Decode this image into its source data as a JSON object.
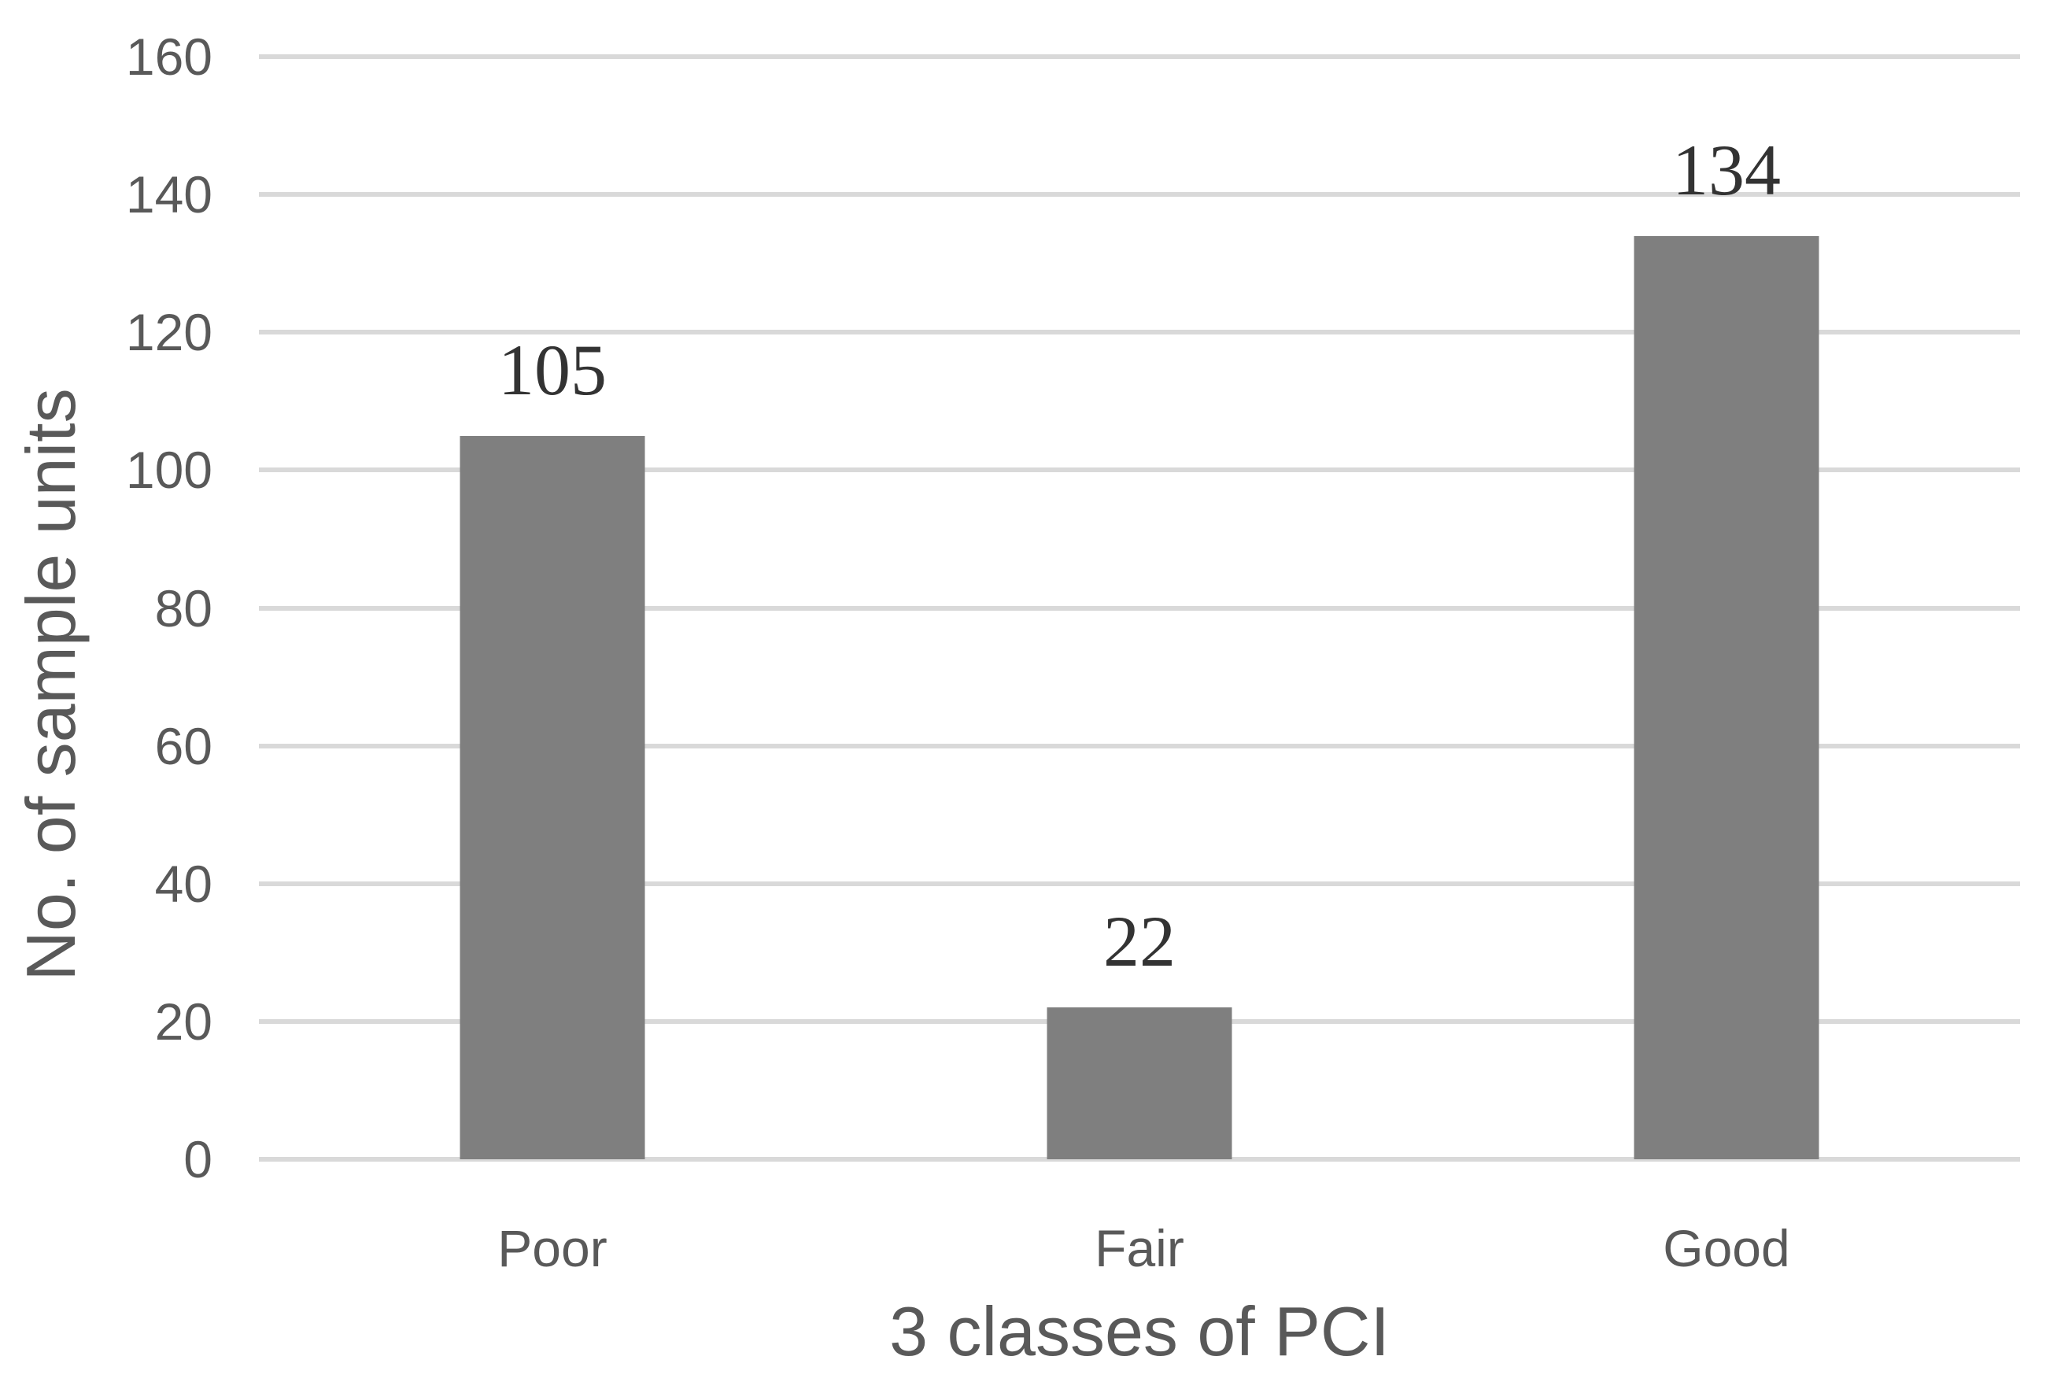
{
  "chart_data": {
    "type": "bar",
    "categories": [
      "Poor",
      "Fair",
      "Good"
    ],
    "values": [
      105,
      22,
      134
    ],
    "title": "",
    "xlabel": "3 classes of PCI",
    "ylabel": "No. of sample units",
    "ylim": [
      0,
      160
    ],
    "ytick_step": 20,
    "ytick_labels": [
      "0",
      "20",
      "40",
      "60",
      "80",
      "100",
      "120",
      "140",
      "160"
    ],
    "grid": true,
    "legend": "none",
    "colors": {
      "bar": "#7f7f7f",
      "gridline": "#d9d9d9",
      "axis_text": "#595959",
      "data_label_text": "#333333",
      "background": "#ffffff"
    }
  }
}
